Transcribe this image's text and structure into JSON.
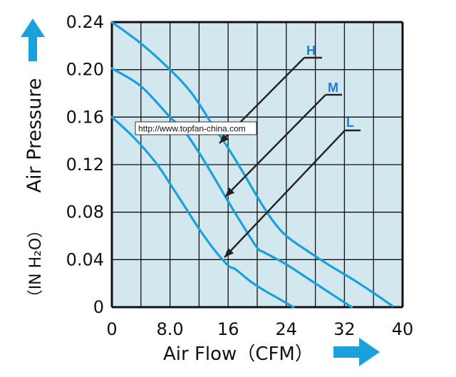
{
  "watermark": "http://www.topfan-china.com",
  "colors": {
    "plot_bg": "#d3e7ee",
    "grid": "#111111",
    "curve": "#1aa0dc",
    "arrow": "#1aa0dc",
    "label": "#1a7fd6",
    "pointer": "#222222"
  },
  "icons": {
    "y_arrow": "arrow-up-icon",
    "x_arrow": "arrow-right-icon"
  },
  "chart_data": {
    "type": "line",
    "title": "",
    "xlabel": "Air Flow（CFM）",
    "ylabel": "Air Pressure",
    "ylabel_unit": "（IN H₂O）",
    "xlim": [
      0,
      40
    ],
    "ylim": [
      0,
      0.24
    ],
    "grid": true,
    "x_ticks": [
      {
        "value": 0,
        "label": "0"
      },
      {
        "value": 8,
        "label": "8.0"
      },
      {
        "value": 16,
        "label": "16"
      },
      {
        "value": 24,
        "label": "24"
      },
      {
        "value": 32,
        "label": "32"
      },
      {
        "value": 40,
        "label": "40"
      }
    ],
    "y_ticks": [
      {
        "value": 0,
        "label": "0"
      },
      {
        "value": 0.04,
        "label": "0.04"
      },
      {
        "value": 0.08,
        "label": "0.08"
      },
      {
        "value": 0.12,
        "label": "0.12"
      },
      {
        "value": 0.16,
        "label": "0.16"
      },
      {
        "value": 0.2,
        "label": "0.20"
      },
      {
        "value": 0.24,
        "label": "0.24"
      }
    ],
    "series": [
      {
        "name": "H",
        "x": [
          0,
          4,
          8,
          11,
          14,
          16,
          18,
          20,
          22,
          24,
          27,
          30,
          33,
          36,
          38.6
        ],
        "y": [
          0.24,
          0.222,
          0.2,
          0.18,
          0.152,
          0.134,
          0.114,
          0.093,
          0.074,
          0.06,
          0.047,
          0.035,
          0.024,
          0.012,
          0.001
        ],
        "label_anchor": [
          14.8,
          0.138
        ]
      },
      {
        "name": "M",
        "x": [
          0,
          4,
          8,
          10,
          12,
          14,
          16,
          18,
          20,
          21,
          24,
          27,
          30,
          33
        ],
        "y": [
          0.201,
          0.186,
          0.16,
          0.148,
          0.13,
          0.11,
          0.089,
          0.069,
          0.05,
          0.046,
          0.036,
          0.024,
          0.012,
          0.0
        ],
        "label_anchor": [
          15.6,
          0.093
        ]
      },
      {
        "name": "L",
        "x": [
          0,
          3,
          6,
          8,
          10,
          12,
          14,
          16,
          17,
          19,
          21,
          23,
          25
        ],
        "y": [
          0.16,
          0.143,
          0.122,
          0.104,
          0.085,
          0.066,
          0.049,
          0.035,
          0.032,
          0.022,
          0.014,
          0.007,
          0.0
        ],
        "label_anchor": [
          15.5,
          0.042
        ]
      }
    ]
  }
}
